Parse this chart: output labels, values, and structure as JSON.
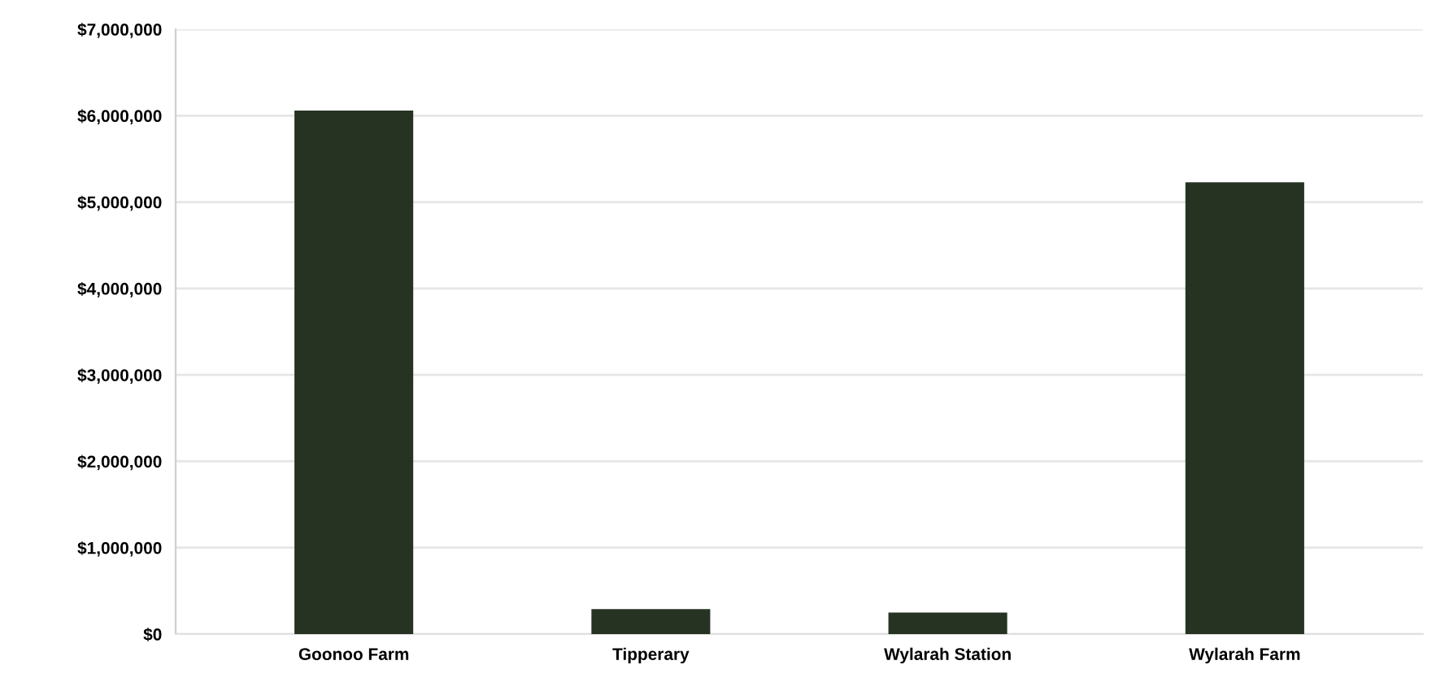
{
  "chart_data": {
    "type": "bar",
    "categories": [
      "Goonoo Farm",
      "Tipperary",
      "Wylarah Station",
      "Wylarah Farm"
    ],
    "values": [
      6060000,
      290000,
      250000,
      5230000
    ],
    "color": "#263323",
    "ylim": [
      0,
      7000000
    ],
    "yticks": [
      {
        "value": 0,
        "label": "$0"
      },
      {
        "value": 1000000,
        "label": "$1,000,000"
      },
      {
        "value": 2000000,
        "label": "$2,000,000"
      },
      {
        "value": 3000000,
        "label": "$3,000,000"
      },
      {
        "value": 4000000,
        "label": "$4,000,000"
      },
      {
        "value": 5000000,
        "label": "$5,000,000"
      },
      {
        "value": 6000000,
        "label": "$6,000,000"
      },
      {
        "value": 7000000,
        "label": "$7,000,000"
      }
    ],
    "grid": "y"
  }
}
